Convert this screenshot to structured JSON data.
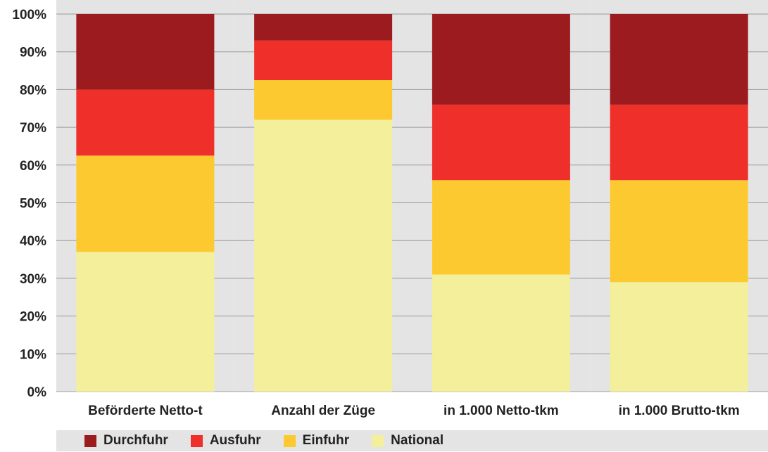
{
  "chart_data": {
    "type": "bar",
    "stacked": true,
    "categories": [
      "Beförderte Netto-t",
      "Anzahl der Züge",
      "in 1.000 Netto-tkm",
      "in 1.000 Brutto-tkm"
    ],
    "series": [
      {
        "name": "National",
        "color": "#f3ef9a",
        "values": [
          37,
          72,
          31,
          29
        ]
      },
      {
        "name": "Einfuhr",
        "color": "#fdc930",
        "values": [
          25.5,
          10.5,
          25,
          27
        ]
      },
      {
        "name": "Ausfuhr",
        "color": "#ee2f2a",
        "values": [
          17.5,
          10.5,
          20,
          20
        ]
      },
      {
        "name": "Durchfuhr",
        "color": "#9b1b1f",
        "values": [
          20,
          7,
          24,
          24
        ]
      }
    ],
    "yticks": [
      "0%",
      "10%",
      "20%",
      "30%",
      "40%",
      "50%",
      "60%",
      "70%",
      "80%",
      "90%",
      "100%"
    ],
    "ylim": [
      0,
      100
    ],
    "grid": true,
    "legend_position": "bottom"
  },
  "legend": {
    "items": [
      {
        "label": "Durchfuhr",
        "color": "#9b1b1f"
      },
      {
        "label": "Ausfuhr",
        "color": "#ee2f2a"
      },
      {
        "label": "Einfuhr",
        "color": "#fdc930"
      },
      {
        "label": "National",
        "color": "#f3ef9a"
      }
    ]
  }
}
